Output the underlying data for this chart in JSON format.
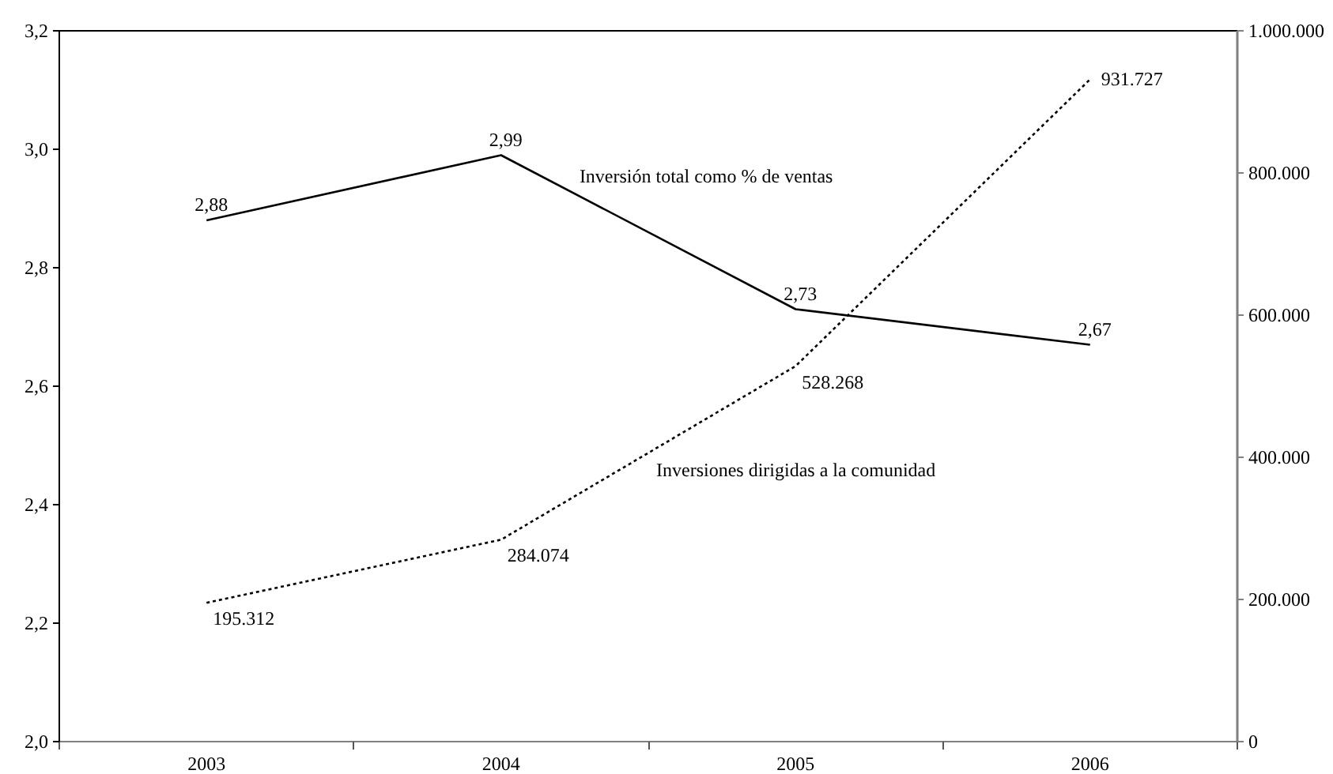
{
  "chart_data": {
    "type": "line",
    "categories": [
      "2003",
      "2004",
      "2005",
      "2006"
    ],
    "series": [
      {
        "name": "Inversión total como % de ventas",
        "color": "#000000",
        "line_style": "solid",
        "values": [
          2.88,
          2.99,
          2.73,
          2.67
        ],
        "value_labels": [
          "2,88",
          "2,99",
          "2,73",
          "2,67"
        ]
      },
      {
        "name": "Inversiones dirigidas a la comunidad",
        "color": "#000000",
        "line_style": "dotted",
        "axis": "y2",
        "values": [
          195312,
          284074,
          528268,
          931727
        ],
        "value_labels": [
          "195.312",
          "284.074",
          "528.268",
          "931.727"
        ]
      }
    ],
    "ylim": [
      2.0,
      3.2
    ],
    "yticks": [
      {
        "value": 2.0,
        "label": "2,0"
      },
      {
        "value": 2.2,
        "label": "2,2"
      },
      {
        "value": 2.4,
        "label": "2,4"
      },
      {
        "value": 2.6,
        "label": "2,6"
      },
      {
        "value": 2.8,
        "label": "2,8"
      },
      {
        "value": 3.0,
        "label": "3,0"
      },
      {
        "value": 3.2,
        "label": "3,2"
      }
    ],
    "y2lim": [
      0,
      1000000
    ],
    "y2ticks": [
      0,
      {
        "value": 200000,
        "label": "200.000"
      },
      {
        "value": 400000,
        "label": "400.000"
      },
      {
        "value": 600000,
        "label": "600.000"
      },
      {
        "value": 800000,
        "label": "800.000"
      },
      {
        "value": 1000000,
        "label": "1.000.000"
      }
    ]
  }
}
